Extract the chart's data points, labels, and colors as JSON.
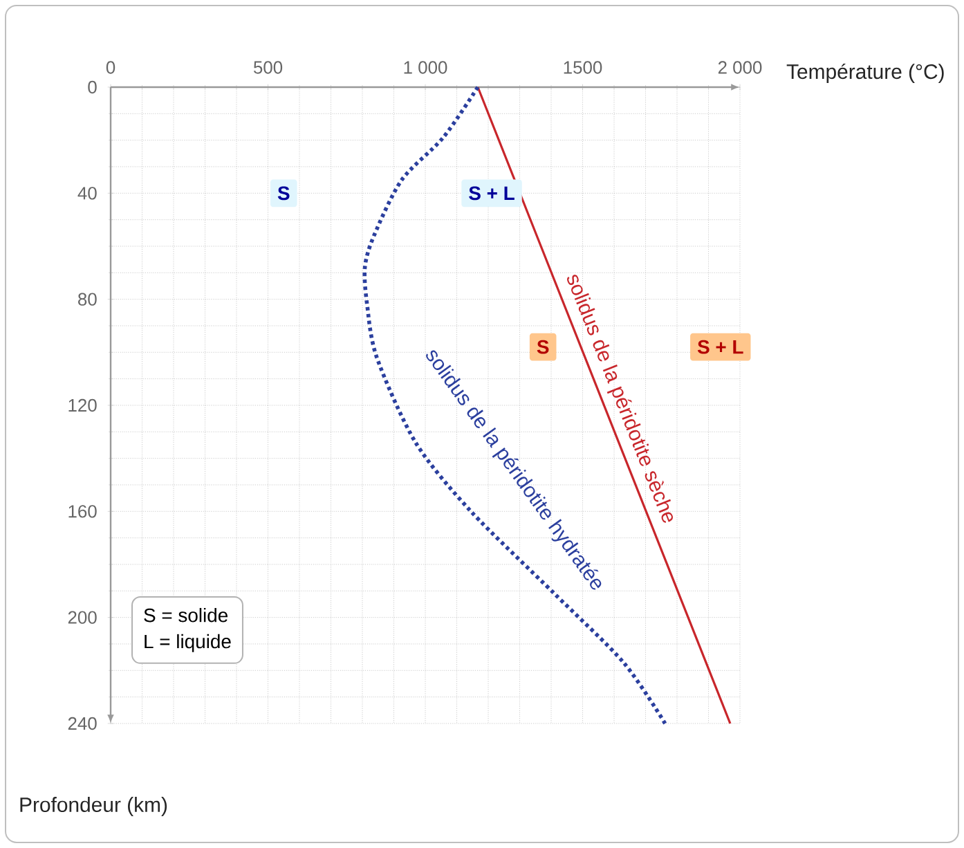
{
  "chart_data": {
    "type": "line",
    "xlabel": "Température (°C)",
    "ylabel": "Profondeur (km)",
    "xlim": [
      0,
      2000
    ],
    "ylim": [
      240,
      0
    ],
    "xticks": [
      0,
      500,
      {
        "value": 1000,
        "label": "1 000"
      },
      1500,
      {
        "value": 2000,
        "label": "2 000"
      }
    ],
    "yticks": [
      0,
      40,
      80,
      120,
      160,
      200,
      240
    ],
    "grid": true,
    "legend": false,
    "marker": "none",
    "series": [
      {
        "name": "solidus de la péridotite sèche",
        "color": "#c8262b",
        "line_style": "solid",
        "x": [
          1167,
          1969
        ],
        "values": [
          0,
          240
        ]
      },
      {
        "name": "solidus de la péridotite hydratée",
        "color": "#2b3f9e",
        "line_style": "dotted",
        "x": [
          1167,
          1057,
          925,
          837,
          808,
          815,
          846,
          969,
          1145,
          1410,
          1630,
          1762
        ],
        "values": [
          0,
          19,
          35,
          56,
          68,
          82,
          102,
          134,
          160,
          191,
          217,
          240
        ]
      }
    ],
    "annotations": [
      {
        "text": "S",
        "x": 550,
        "y": 40
      },
      {
        "text": "S + L",
        "x": 1211,
        "y": 40
      },
      {
        "text": "S",
        "x": 1374,
        "y": 98
      },
      {
        "text": "S + L",
        "x": 1938,
        "y": 98
      },
      "S = solide",
      "L = liquide"
    ]
  }
}
